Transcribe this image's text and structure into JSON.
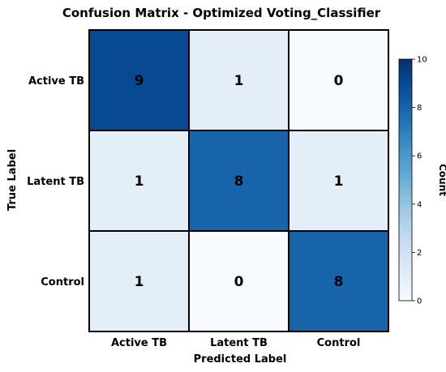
{
  "chart_data": {
    "type": "heatmap",
    "title": "Confusion Matrix - Optimized Voting_Classifier",
    "xlabel": "Predicted Label",
    "ylabel": "True Label",
    "x_categories": [
      "Active TB",
      "Latent TB",
      "Control"
    ],
    "y_categories": [
      "Active TB",
      "Latent TB",
      "Control"
    ],
    "values": [
      [
        9,
        1,
        0
      ],
      [
        1,
        8,
        1
      ],
      [
        1,
        0,
        8
      ]
    ],
    "colorbar": {
      "label": "Count",
      "range": [
        0,
        10
      ],
      "ticks": [
        "0",
        "2",
        "4",
        "6",
        "8",
        "10"
      ]
    },
    "colormap": "Blues",
    "colors": {
      "low": "#f7fbff",
      "high": "#08306b",
      "grid_line": "#000000"
    }
  }
}
